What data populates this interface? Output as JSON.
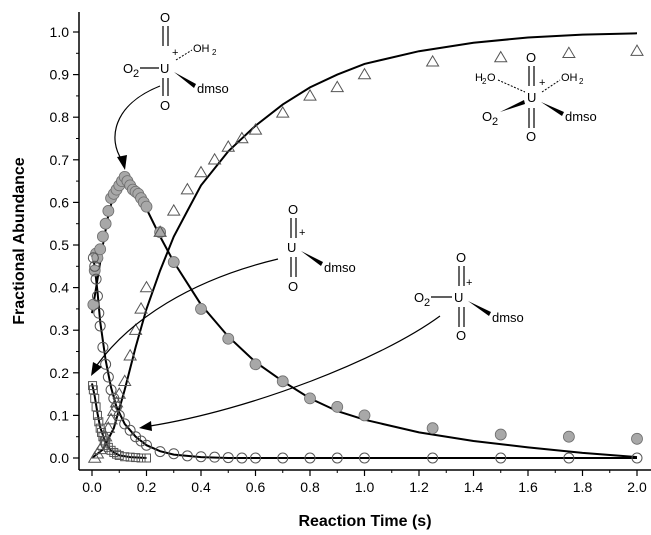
{
  "chart_data": {
    "type": "scatter",
    "xlabel": "Reaction Time (s)",
    "ylabel": "Fractional Abundance",
    "xlim": [
      -0.05,
      2.05
    ],
    "ylim": [
      -0.02,
      1.05
    ],
    "x_ticks": [
      "0.0",
      "0.2",
      "0.4",
      "0.6",
      "0.8",
      "1.0",
      "1.2",
      "1.4",
      "1.6",
      "1.8",
      "2.0"
    ],
    "y_ticks": [
      "0.0",
      "0.1",
      "0.2",
      "0.3",
      "0.4",
      "0.5",
      "0.6",
      "0.7",
      "0.8",
      "0.9",
      "1.0"
    ],
    "grid": false,
    "series": [
      {
        "marker": "circle-filled-gray",
        "points": [
          [
            0.005,
            0.36
          ],
          [
            0.01,
            0.44
          ],
          [
            0.015,
            0.48
          ],
          [
            0.02,
            0.47
          ],
          [
            0.03,
            0.49
          ],
          [
            0.04,
            0.52
          ],
          [
            0.05,
            0.55
          ],
          [
            0.06,
            0.58
          ],
          [
            0.07,
            0.61
          ],
          [
            0.08,
            0.62
          ],
          [
            0.09,
            0.63
          ],
          [
            0.1,
            0.64
          ],
          [
            0.11,
            0.65
          ],
          [
            0.12,
            0.66
          ],
          [
            0.13,
            0.65
          ],
          [
            0.14,
            0.64
          ],
          [
            0.15,
            0.63
          ],
          [
            0.16,
            0.625
          ],
          [
            0.17,
            0.62
          ],
          [
            0.18,
            0.61
          ],
          [
            0.19,
            0.6
          ],
          [
            0.2,
            0.59
          ],
          [
            0.25,
            0.53
          ],
          [
            0.3,
            0.46
          ],
          [
            0.4,
            0.35
          ],
          [
            0.5,
            0.28
          ],
          [
            0.6,
            0.22
          ],
          [
            0.7,
            0.18
          ],
          [
            0.8,
            0.14
          ],
          [
            0.9,
            0.12
          ],
          [
            1.0,
            0.1
          ],
          [
            1.25,
            0.07
          ],
          [
            1.5,
            0.055
          ],
          [
            1.75,
            0.05
          ],
          [
            2.0,
            0.045
          ]
        ],
        "fit_line": [
          [
            0.0,
            0.34
          ],
          [
            0.02,
            0.42
          ],
          [
            0.04,
            0.5
          ],
          [
            0.06,
            0.57
          ],
          [
            0.08,
            0.62
          ],
          [
            0.1,
            0.645
          ],
          [
            0.12,
            0.655
          ],
          [
            0.14,
            0.645
          ],
          [
            0.16,
            0.625
          ],
          [
            0.2,
            0.585
          ],
          [
            0.25,
            0.52
          ],
          [
            0.3,
            0.46
          ],
          [
            0.4,
            0.36
          ],
          [
            0.5,
            0.285
          ],
          [
            0.6,
            0.225
          ],
          [
            0.7,
            0.18
          ],
          [
            0.8,
            0.14
          ],
          [
            0.9,
            0.11
          ],
          [
            1.0,
            0.09
          ],
          [
            1.2,
            0.06
          ],
          [
            1.4,
            0.04
          ],
          [
            1.6,
            0.025
          ],
          [
            1.8,
            0.012
          ],
          [
            2.0,
            0.002
          ]
        ]
      },
      {
        "marker": "triangle-open",
        "points": [
          [
            0.01,
            0.0
          ],
          [
            0.02,
            0.01
          ],
          [
            0.03,
            0.02
          ],
          [
            0.04,
            0.03
          ],
          [
            0.05,
            0.05
          ],
          [
            0.06,
            0.07
          ],
          [
            0.07,
            0.09
          ],
          [
            0.08,
            0.11
          ],
          [
            0.09,
            0.13
          ],
          [
            0.1,
            0.15
          ],
          [
            0.12,
            0.18
          ],
          [
            0.14,
            0.24
          ],
          [
            0.16,
            0.3
          ],
          [
            0.18,
            0.35
          ],
          [
            0.2,
            0.4
          ],
          [
            0.25,
            0.53
          ],
          [
            0.3,
            0.58
          ],
          [
            0.35,
            0.63
          ],
          [
            0.4,
            0.67
          ],
          [
            0.45,
            0.7
          ],
          [
            0.5,
            0.73
          ],
          [
            0.55,
            0.75
          ],
          [
            0.6,
            0.77
          ],
          [
            0.7,
            0.81
          ],
          [
            0.8,
            0.85
          ],
          [
            0.9,
            0.87
          ],
          [
            1.0,
            0.9
          ],
          [
            1.25,
            0.93
          ],
          [
            1.5,
            0.94
          ],
          [
            1.75,
            0.95
          ],
          [
            2.0,
            0.955
          ]
        ],
        "fit_line": [
          [
            0.0,
            0.0
          ],
          [
            0.04,
            0.02
          ],
          [
            0.08,
            0.07
          ],
          [
            0.12,
            0.16
          ],
          [
            0.16,
            0.26
          ],
          [
            0.2,
            0.35
          ],
          [
            0.25,
            0.44
          ],
          [
            0.3,
            0.52
          ],
          [
            0.35,
            0.58
          ],
          [
            0.4,
            0.64
          ],
          [
            0.5,
            0.72
          ],
          [
            0.6,
            0.78
          ],
          [
            0.7,
            0.83
          ],
          [
            0.8,
            0.87
          ],
          [
            0.9,
            0.9
          ],
          [
            1.0,
            0.925
          ],
          [
            1.2,
            0.955
          ],
          [
            1.4,
            0.975
          ],
          [
            1.6,
            0.987
          ],
          [
            1.8,
            0.994
          ],
          [
            2.0,
            0.997
          ]
        ]
      },
      {
        "marker": "circle-open",
        "points": [
          [
            0.005,
            0.47
          ],
          [
            0.01,
            0.45
          ],
          [
            0.015,
            0.42
          ],
          [
            0.02,
            0.38
          ],
          [
            0.025,
            0.34
          ],
          [
            0.03,
            0.31
          ],
          [
            0.04,
            0.26
          ],
          [
            0.05,
            0.22
          ],
          [
            0.06,
            0.19
          ],
          [
            0.07,
            0.16
          ],
          [
            0.08,
            0.14
          ],
          [
            0.09,
            0.12
          ],
          [
            0.1,
            0.1
          ],
          [
            0.12,
            0.08
          ],
          [
            0.14,
            0.065
          ],
          [
            0.16,
            0.05
          ],
          [
            0.18,
            0.04
          ],
          [
            0.2,
            0.03
          ],
          [
            0.25,
            0.015
          ],
          [
            0.3,
            0.01
          ],
          [
            0.35,
            0.005
          ],
          [
            0.4,
            0.003
          ],
          [
            0.45,
            0.002
          ],
          [
            0.5,
            0.001
          ],
          [
            0.55,
            0.0
          ],
          [
            0.6,
            0.0
          ],
          [
            0.7,
            0.0
          ],
          [
            0.8,
            0.0
          ],
          [
            0.9,
            0.0
          ],
          [
            1.0,
            0.0
          ],
          [
            1.25,
            0.0
          ],
          [
            1.5,
            0.0
          ],
          [
            1.75,
            0.0
          ],
          [
            2.0,
            0.0
          ]
        ],
        "fit_line": [
          [
            0.0,
            0.48
          ],
          [
            0.01,
            0.45
          ],
          [
            0.02,
            0.39
          ],
          [
            0.03,
            0.32
          ],
          [
            0.05,
            0.23
          ],
          [
            0.07,
            0.165
          ],
          [
            0.09,
            0.12
          ],
          [
            0.12,
            0.08
          ],
          [
            0.16,
            0.05
          ],
          [
            0.2,
            0.03
          ],
          [
            0.25,
            0.016
          ],
          [
            0.3,
            0.008
          ],
          [
            0.4,
            0.002
          ],
          [
            0.5,
            0.0
          ],
          [
            1.0,
            0.0
          ],
          [
            2.0,
            0.0
          ]
        ]
      },
      {
        "marker": "square-open",
        "points": [
          [
            0.002,
            0.17
          ],
          [
            0.005,
            0.16
          ],
          [
            0.01,
            0.14
          ],
          [
            0.015,
            0.12
          ],
          [
            0.02,
            0.1
          ],
          [
            0.025,
            0.085
          ],
          [
            0.03,
            0.07
          ],
          [
            0.035,
            0.06
          ],
          [
            0.04,
            0.05
          ],
          [
            0.045,
            0.04
          ],
          [
            0.05,
            0.035
          ],
          [
            0.06,
            0.025
          ],
          [
            0.07,
            0.018
          ],
          [
            0.08,
            0.013
          ],
          [
            0.09,
            0.009
          ],
          [
            0.1,
            0.006
          ],
          [
            0.12,
            0.003
          ],
          [
            0.14,
            0.002
          ],
          [
            0.16,
            0.001
          ],
          [
            0.18,
            0.0
          ],
          [
            0.2,
            0.0
          ]
        ],
        "fit_line": [
          [
            0.0,
            0.175
          ],
          [
            0.01,
            0.145
          ],
          [
            0.02,
            0.105
          ],
          [
            0.03,
            0.072
          ],
          [
            0.05,
            0.035
          ],
          [
            0.07,
            0.017
          ],
          [
            0.1,
            0.006
          ],
          [
            0.14,
            0.002
          ],
          [
            0.2,
            0.0
          ]
        ]
      }
    ],
    "annotations": [
      {
        "data_name": "annotation-dioxo-aqua-dmso",
        "text": "O2-U(+)(OH2)(dmso)",
        "arrow_to": [
          0.13,
          0.66
        ]
      },
      {
        "data_name": "annotation-diaqua-dmso",
        "text": "(H2O)2 O2 U(+) dmso",
        "arrow_to": null
      },
      {
        "data_name": "annotation-oxo-dmso",
        "text": "OU(+)dmso",
        "arrow_to": [
          0.0,
          0.16
        ]
      },
      {
        "data_name": "annotation-dioxo-dmso",
        "text": "O2-U(+)dmso",
        "arrow_to": [
          0.08,
          0.08
        ]
      }
    ]
  }
}
